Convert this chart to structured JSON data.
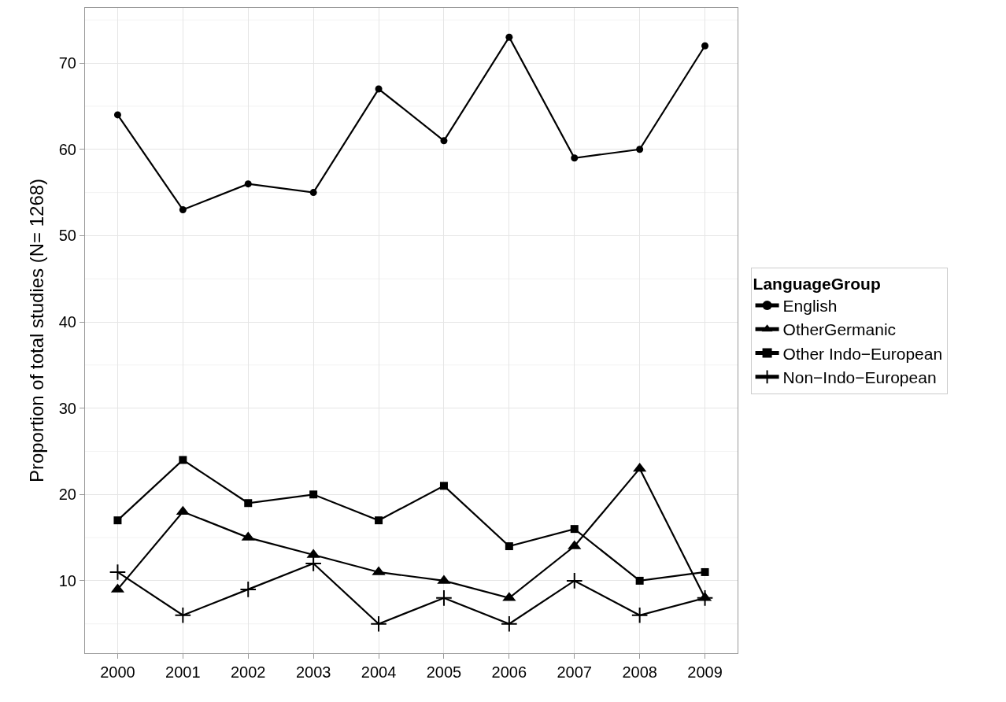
{
  "chart_data": {
    "type": "line",
    "ylabel": "Proportion of total studies (N= 1268)",
    "legend_title": "LanguageGroup",
    "categories": [
      "2000",
      "2001",
      "2002",
      "2003",
      "2004",
      "2005",
      "2006",
      "2007",
      "2008",
      "2009"
    ],
    "series": [
      {
        "name": "English",
        "color": "#000000",
        "marker": "circle",
        "values": [
          64,
          53,
          56,
          55,
          67,
          61,
          73,
          59,
          60,
          72
        ]
      },
      {
        "name": "OtherGermanic",
        "color": "#000000",
        "marker": "triangle",
        "values": [
          9,
          18,
          15,
          13,
          11,
          10,
          8,
          14,
          23,
          8
        ]
      },
      {
        "name": "Other Indo−European",
        "color": "#000000",
        "marker": "square",
        "values": [
          17,
          24,
          19,
          20,
          17,
          21,
          14,
          16,
          10,
          11
        ]
      },
      {
        "name": "Non−Indo−European",
        "color": "#000000",
        "marker": "cross",
        "values": [
          11,
          6,
          9,
          12,
          5,
          8,
          5,
          10,
          6,
          8
        ]
      }
    ],
    "ylim": [
      1.6,
      76.4
    ],
    "yticks": [
      10,
      20,
      30,
      40,
      50,
      60,
      70
    ],
    "grid": true,
    "legend": "right",
    "line_style": "solid"
  }
}
